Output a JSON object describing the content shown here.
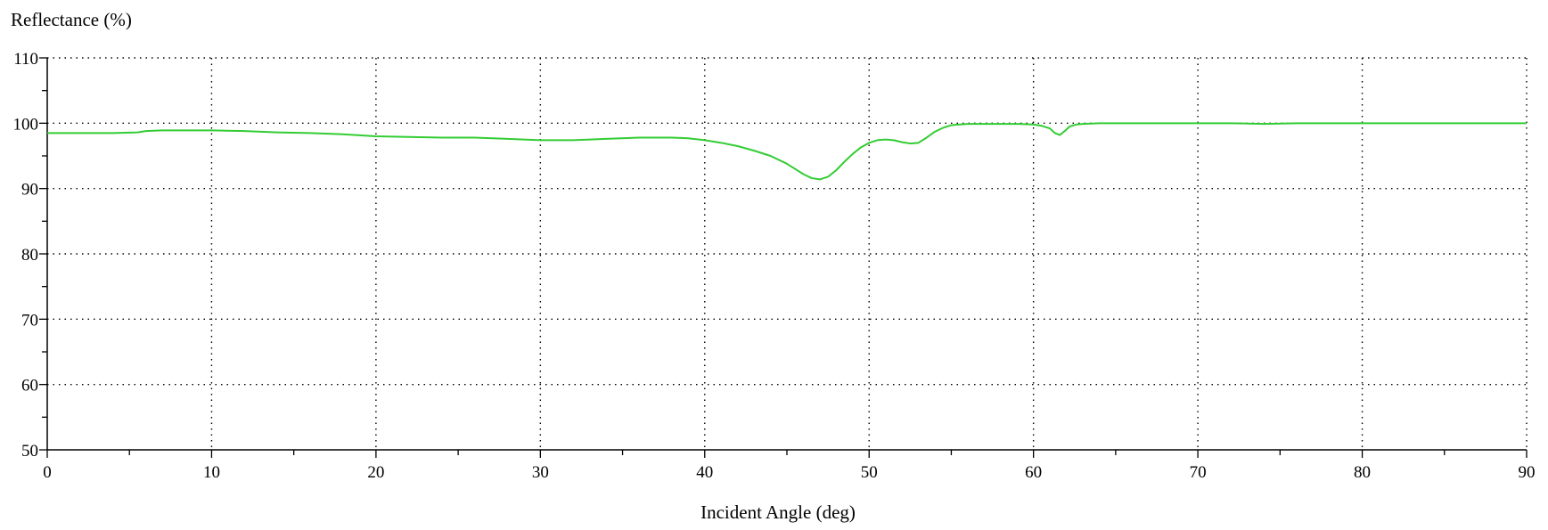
{
  "chart_data": {
    "type": "line",
    "ylabel": "Reflectance (%)",
    "xlabel": "Incident Angle (deg)",
    "xlim": [
      0,
      90
    ],
    "ylim": [
      50,
      110
    ],
    "x_ticks": [
      0,
      10,
      20,
      30,
      40,
      50,
      60,
      70,
      80,
      90
    ],
    "y_ticks": [
      50,
      60,
      70,
      80,
      90,
      100,
      110
    ],
    "grid": true,
    "line_color": "#33cc33",
    "series": [
      {
        "x": [
          0,
          2,
          4,
          5.5,
          6,
          7,
          8,
          10,
          12,
          14,
          16,
          18,
          20,
          22,
          24,
          26,
          28,
          30,
          32,
          34,
          36,
          38,
          39,
          40,
          41,
          42,
          43,
          44,
          45,
          45.5,
          46,
          46.5,
          47,
          47.5,
          48,
          48.5,
          49,
          49.5,
          50,
          50.5,
          51,
          51.5,
          52,
          52.5,
          53,
          53.5,
          54,
          54.5,
          55,
          56,
          57,
          58,
          59,
          60,
          60.5,
          61,
          61.3,
          61.6,
          61.9,
          62.2,
          62.6,
          63,
          64,
          66,
          68,
          70,
          72,
          74,
          76,
          78,
          80,
          82,
          84,
          86,
          88,
          90
        ],
        "y": [
          98.5,
          98.5,
          98.5,
          98.6,
          98.8,
          98.9,
          98.9,
          98.9,
          98.8,
          98.6,
          98.5,
          98.3,
          98.0,
          97.9,
          97.8,
          97.8,
          97.6,
          97.4,
          97.4,
          97.6,
          97.8,
          97.8,
          97.7,
          97.4,
          97.0,
          96.5,
          95.8,
          95.0,
          93.8,
          93.0,
          92.2,
          91.6,
          91.4,
          91.8,
          92.8,
          94.1,
          95.3,
          96.3,
          97.0,
          97.4,
          97.5,
          97.4,
          97.1,
          96.9,
          97.0,
          97.8,
          98.7,
          99.3,
          99.7,
          99.9,
          99.9,
          99.9,
          99.9,
          99.8,
          99.6,
          99.2,
          98.5,
          98.2,
          98.8,
          99.5,
          99.8,
          99.9,
          100.0,
          100.0,
          100.0,
          100.0,
          100.0,
          99.9,
          100.0,
          100.0,
          100.0,
          100.0,
          100.0,
          100.0,
          100.0,
          100.0
        ]
      }
    ]
  }
}
